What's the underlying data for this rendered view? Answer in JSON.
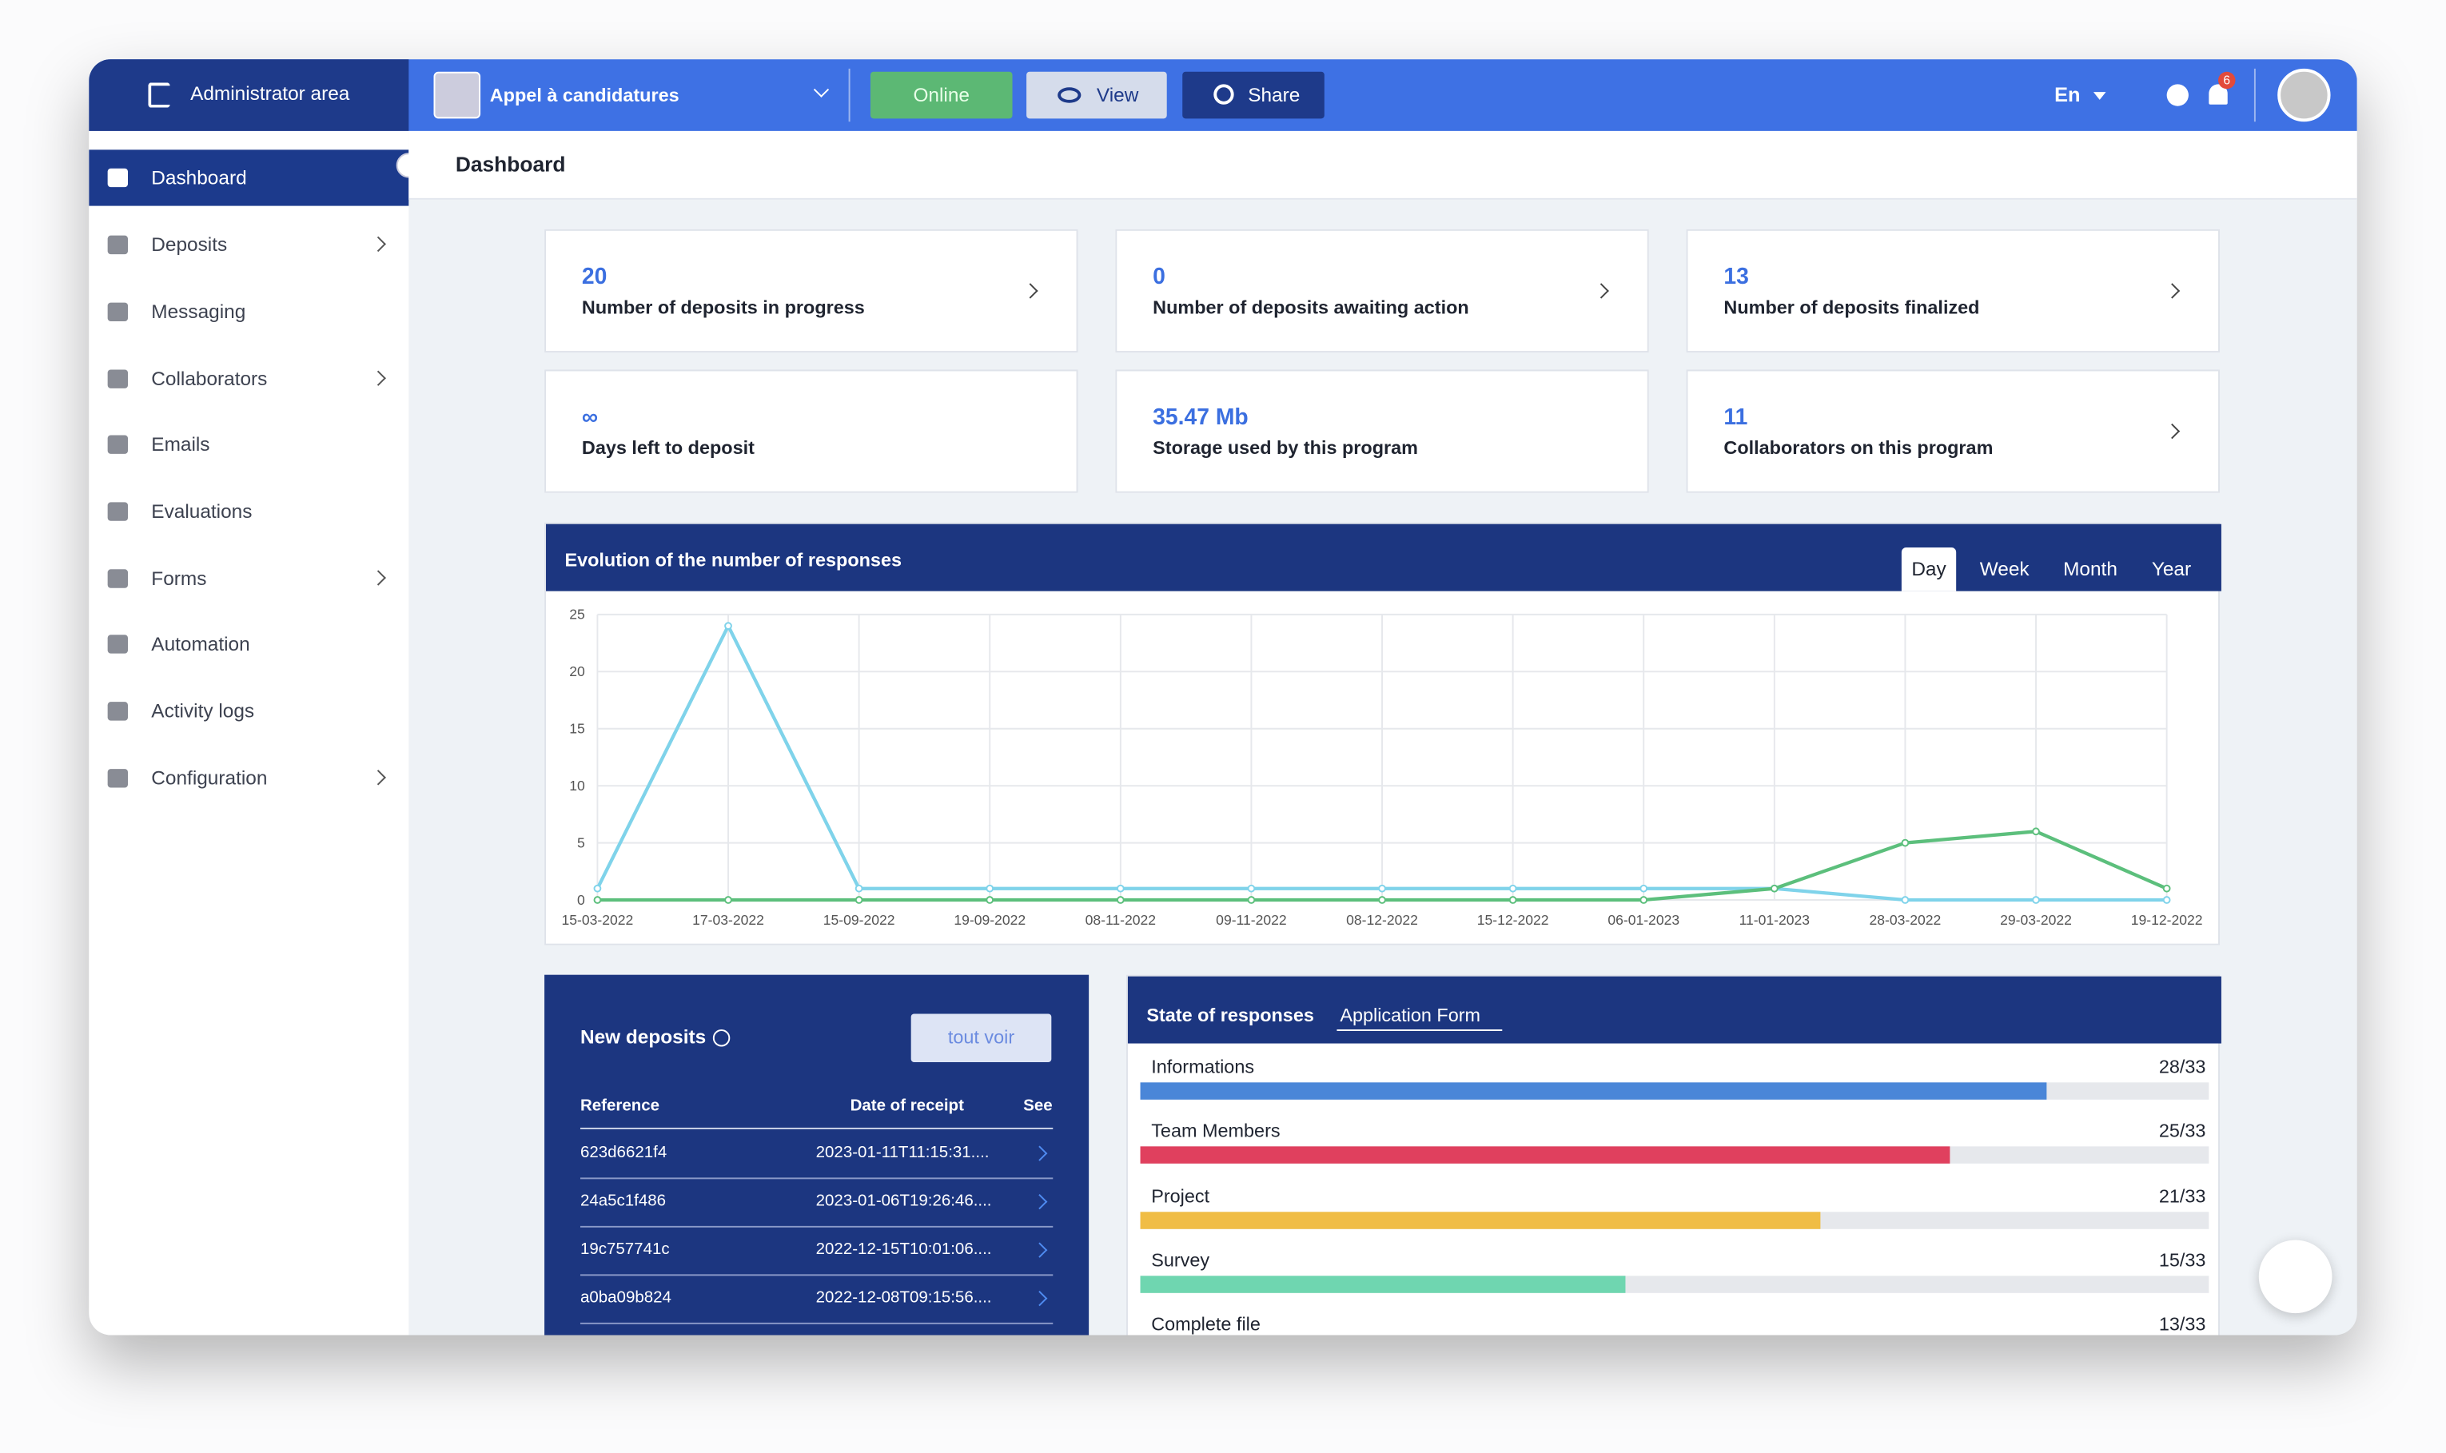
{
  "header": {
    "admin_area": "Administrator area",
    "program": "Appel à candidatures",
    "status": "Online",
    "view": "View",
    "share": "Share",
    "language": "En",
    "notifications": "6"
  },
  "sidebar": {
    "items": [
      "Dashboard",
      "Deposits",
      "Messaging",
      "Collaborators",
      "Emails",
      "Evaluations",
      "Forms",
      "Automation",
      "Activity logs",
      "Configuration"
    ]
  },
  "page_title": "Dashboard",
  "stats": [
    {
      "value": 20,
      "label": "Number of deposits in progress"
    },
    {
      "value": 0,
      "label": "Number of deposits awaiting action"
    },
    {
      "value": 13,
      "label": "Number of deposits finalized"
    },
    {
      "value": "∞",
      "label": "Days left to deposit"
    },
    {
      "value": "35.47 Mb",
      "label": "Storage used by this program"
    },
    {
      "value": 11,
      "label": "Collaborators on this program"
    }
  ],
  "chart_tabs": [
    "Day",
    "Week",
    "Month",
    "Year"
  ],
  "chart_data": {
    "type": "line",
    "title": "Evolution of the number of responses",
    "categories": [
      "15-03-2022",
      "17-03-2022",
      "15-09-2022",
      "19-09-2022",
      "08-11-2022",
      "09-11-2022",
      "08-12-2022",
      "15-12-2022",
      "06-01-2023",
      "11-01-2023",
      "28-03-2022",
      "29-03-2022",
      "19-12-2022"
    ],
    "series": [
      {
        "color": "#7fd3ea",
        "values": [
          1,
          24,
          1,
          1,
          1,
          1,
          1,
          1,
          1,
          1,
          0,
          0,
          0
        ]
      },
      {
        "color": "#5cbf7c",
        "values": [
          0,
          0,
          0,
          0,
          0,
          0,
          0,
          0,
          0,
          1,
          5,
          6,
          1
        ]
      }
    ],
    "ylim": [
      0,
      25
    ],
    "yticks": [
      0,
      5,
      10,
      15,
      20,
      25
    ],
    "grid": true
  },
  "new_deposits": {
    "title": "New deposits",
    "button": "tout voir",
    "columns": [
      "Reference",
      "Date of receipt",
      "See"
    ],
    "rows": [
      [
        "623d6621f4",
        "2023-01-11T11:15:31...."
      ],
      [
        "24a5c1f486",
        "2023-01-06T19:26:46...."
      ],
      [
        "19c757741c",
        "2022-12-15T10:01:06...."
      ],
      [
        "a0ba09b824",
        "2022-12-08T09:15:56...."
      ]
    ]
  },
  "responses": {
    "title": "State of responses",
    "form": "Application Form",
    "total": 33,
    "categories": [
      "Informations",
      "Team Members",
      "Project",
      "Survey",
      "Complete file"
    ],
    "values": [
      28,
      25,
      21,
      15,
      13
    ],
    "value_labels": [
      "28/33",
      "25/33",
      "21/33",
      "15/33",
      "13/33"
    ],
    "colors": [
      "#4a86d8",
      "#e0405e",
      "#f0bd45",
      "#6fd6b0",
      "#9aa7c7"
    ]
  }
}
